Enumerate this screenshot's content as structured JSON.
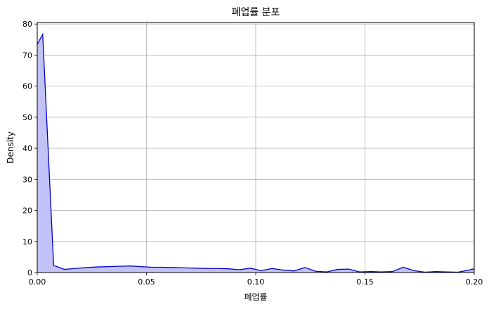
{
  "chart_data": {
    "type": "area",
    "title": "폐업률 분포",
    "xlabel": "폐업률",
    "ylabel": "Density",
    "xlim": [
      0,
      0.2
    ],
    "ylim": [
      0,
      80.5
    ],
    "xticks": [
      "0.00",
      "0.05",
      "0.10",
      "0.15",
      "0.20"
    ],
    "xtick_values": [
      0,
      0.05,
      0.1,
      0.15,
      0.2
    ],
    "yticks": [
      "0",
      "10",
      "20",
      "30",
      "40",
      "50",
      "60",
      "70",
      "80"
    ],
    "ytick_values": [
      0,
      10,
      20,
      30,
      40,
      50,
      60,
      70,
      80
    ],
    "grid": true,
    "line_color": "#0000cc",
    "fill_color": "#c2c2f7",
    "series": [
      {
        "x": [
          0,
          0.0025,
          0.0075,
          0.0125,
          0.0175,
          0.0225,
          0.0275,
          0.0325,
          0.0375,
          0.0425,
          0.0475,
          0.0525,
          0.0575,
          0.0625,
          0.0675,
          0.0725,
          0.0775,
          0.0825,
          0.0875,
          0.0925,
          0.0975,
          0.1025,
          0.1075,
          0.1125,
          0.1175,
          0.1225,
          0.1275,
          0.1325,
          0.1375,
          0.1425,
          0.1475,
          0.1525,
          0.1575,
          0.1625,
          0.1675,
          0.1725,
          0.1775,
          0.1825,
          0.1875,
          0.1925,
          0.1975,
          0.2
        ],
        "values": [
          73.5,
          76.7,
          2.3,
          1.0,
          1.3,
          1.6,
          1.8,
          1.9,
          2.0,
          2.1,
          1.9,
          1.7,
          1.7,
          1.6,
          1.5,
          1.4,
          1.3,
          1.3,
          1.2,
          0.9,
          1.4,
          0.6,
          1.3,
          0.8,
          0.5,
          1.6,
          0.4,
          0.2,
          1.0,
          1.1,
          0.2,
          0.3,
          0.2,
          0.3,
          1.7,
          0.6,
          0.1,
          0.3,
          0.2,
          0.1,
          0.8,
          1.2
        ]
      }
    ]
  }
}
